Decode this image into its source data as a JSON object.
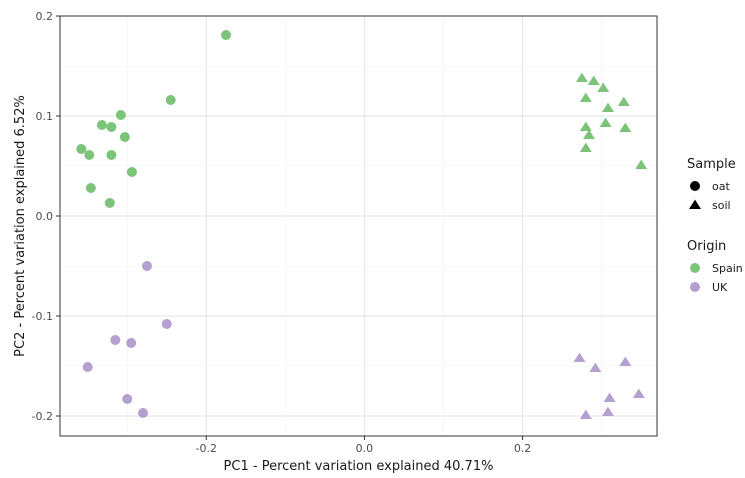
{
  "chart_data": {
    "type": "scatter",
    "xlabel": "PC1 - Percent variation explained 40.71%",
    "ylabel": "PC2 - Percent variation explained 6.52%",
    "xlim": [
      -0.385,
      0.37
    ],
    "ylim": [
      -0.22,
      0.2
    ],
    "x_ticks": [
      -0.2,
      0.0,
      0.2
    ],
    "x_tick_labels": [
      "-0.2",
      "0.0",
      "0.2"
    ],
    "y_ticks": [
      -0.2,
      -0.1,
      0.0,
      0.1,
      0.2
    ],
    "y_tick_labels": [
      "-0.2",
      "-0.1",
      "0.0",
      "0.1",
      "0.2"
    ],
    "grid": true,
    "legend_position": "right",
    "colors": {
      "Spain": "#7cc47a",
      "UK": "#b39fd0"
    },
    "legends": [
      {
        "title": "Sample",
        "kind": "shape",
        "entries": [
          {
            "label": "oat",
            "shape": "circle"
          },
          {
            "label": "soil",
            "shape": "triangle"
          }
        ]
      },
      {
        "title": "Origin",
        "kind": "color",
        "entries": [
          {
            "label": "Spain",
            "color": "#7cc47a"
          },
          {
            "label": "UK",
            "color": "#b39fd0"
          }
        ]
      }
    ],
    "series": [
      {
        "sample": "oat",
        "origin": "Spain",
        "points": [
          [
            -0.175,
            0.181
          ],
          [
            -0.245,
            0.116
          ],
          [
            -0.308,
            0.101
          ],
          [
            -0.332,
            0.091
          ],
          [
            -0.32,
            0.089
          ],
          [
            -0.303,
            0.079
          ],
          [
            -0.358,
            0.067
          ],
          [
            -0.348,
            0.061
          ],
          [
            -0.32,
            0.061
          ],
          [
            -0.294,
            0.044
          ],
          [
            -0.346,
            0.028
          ],
          [
            -0.322,
            0.013
          ]
        ]
      },
      {
        "sample": "oat",
        "origin": "UK",
        "points": [
          [
            -0.275,
            -0.05
          ],
          [
            -0.25,
            -0.108
          ],
          [
            -0.315,
            -0.124
          ],
          [
            -0.295,
            -0.127
          ],
          [
            -0.35,
            -0.151
          ],
          [
            -0.3,
            -0.183
          ],
          [
            -0.28,
            -0.197
          ]
        ]
      },
      {
        "sample": "soil",
        "origin": "Spain",
        "points": [
          [
            0.275,
            0.138
          ],
          [
            0.29,
            0.135
          ],
          [
            0.302,
            0.128
          ],
          [
            0.28,
            0.118
          ],
          [
            0.328,
            0.114
          ],
          [
            0.308,
            0.108
          ],
          [
            0.28,
            0.089
          ],
          [
            0.305,
            0.093
          ],
          [
            0.33,
            0.088
          ],
          [
            0.284,
            0.081
          ],
          [
            0.28,
            0.068
          ],
          [
            0.35,
            0.051
          ]
        ]
      },
      {
        "sample": "soil",
        "origin": "UK",
        "points": [
          [
            0.272,
            -0.142
          ],
          [
            0.33,
            -0.146
          ],
          [
            0.292,
            -0.152
          ],
          [
            0.347,
            -0.178
          ],
          [
            0.31,
            -0.182
          ],
          [
            0.28,
            -0.199
          ],
          [
            0.308,
            -0.196
          ]
        ]
      }
    ]
  }
}
